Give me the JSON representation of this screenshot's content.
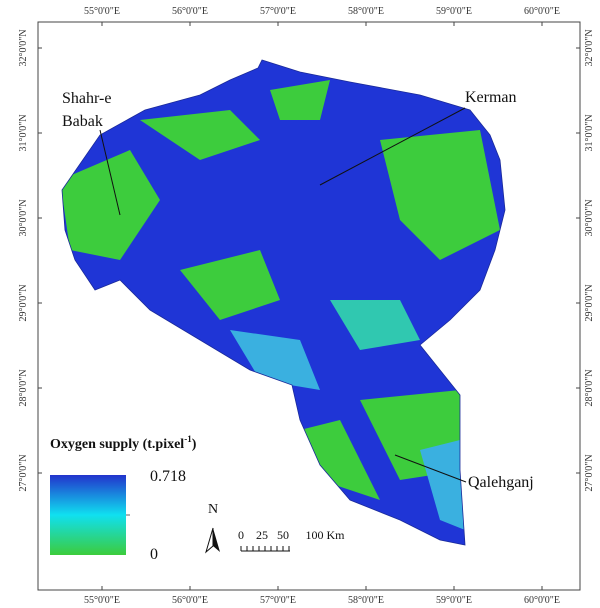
{
  "map": {
    "longitude_ticks": [
      "55°0'0\"E",
      "56°0'0\"E",
      "57°0'0\"E",
      "58°0'0\"E",
      "59°0'0\"E",
      "60°0'0\"E"
    ],
    "latitude_ticks": [
      "32°0'0\"N",
      "31°0'0\"N",
      "30°0'0\"N",
      "29°0'0\"N",
      "28°0'0\"N",
      "27°0'0\"N"
    ],
    "places": {
      "shahr_e_babak": [
        "Shahr-e",
        "Babak"
      ],
      "kerman": "Kerman",
      "qalehganj": "Qalehganj"
    },
    "legend": {
      "title": "Oxygen supply (t.pixel",
      "title_superscript": "-1",
      "title_end": ")",
      "max": "0.718",
      "min": "0"
    },
    "north": "N",
    "scale_labels": [
      "0",
      "25",
      "50",
      "100 Km"
    ]
  }
}
